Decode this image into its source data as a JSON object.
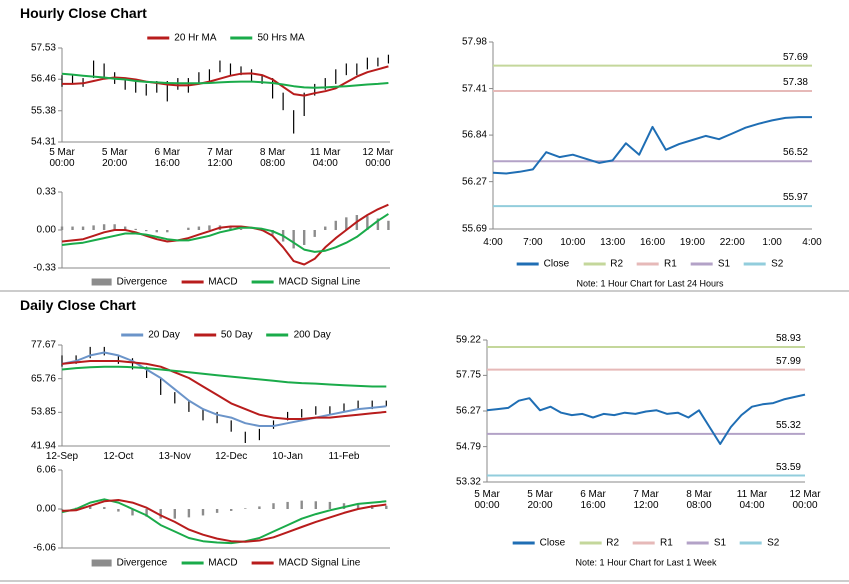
{
  "titles": [
    "Hourly Close Chart",
    "Daily Close Chart"
  ],
  "chart_data": [
    {
      "type": "ohlc",
      "bar_color": "#000000",
      "categories": [
        "5 Mar\n00:00",
        null,
        null,
        null,
        null,
        "5 Mar\n20:00",
        null,
        null,
        null,
        null,
        "6 Mar\n16:00",
        null,
        null,
        null,
        null,
        "7 Mar\n12:00",
        null,
        null,
        null,
        null,
        "8 Mar\n08:00",
        null,
        null,
        null,
        null,
        "11 Mar\n04:00",
        null,
        null,
        null,
        null,
        "12 Mar\n00:00",
        null
      ],
      "high": [
        56.6,
        56.6,
        56.5,
        57.1,
        57.0,
        56.7,
        56.5,
        56.4,
        56.3,
        56.4,
        56.4,
        56.5,
        56.5,
        56.7,
        56.8,
        57.1,
        57.0,
        56.9,
        56.8,
        56.6,
        56.5,
        56.0,
        55.4,
        56.0,
        56.3,
        56.5,
        56.8,
        57.0,
        57.0,
        57.2,
        57.2,
        57.3
      ],
      "low": [
        56.2,
        56.3,
        56.2,
        56.5,
        56.5,
        56.3,
        56.1,
        56.0,
        55.9,
        56.0,
        55.7,
        56.1,
        56.0,
        56.3,
        56.4,
        56.7,
        56.6,
        56.6,
        56.4,
        56.3,
        55.8,
        55.4,
        54.6,
        55.2,
        55.9,
        56.1,
        56.3,
        56.6,
        56.6,
        56.8,
        56.9,
        57.0
      ],
      "series": [
        {
          "name": "20 Hr MA",
          "color": "#b81c1c",
          "values": [
            56.3,
            56.3,
            56.32,
            56.4,
            56.48,
            56.52,
            56.5,
            56.45,
            56.38,
            56.33,
            56.28,
            56.25,
            56.25,
            56.3,
            56.38,
            56.48,
            56.58,
            56.65,
            56.66,
            56.6,
            56.45,
            56.2,
            55.95,
            55.9,
            55.98,
            56.05,
            56.15,
            56.35,
            56.55,
            56.7,
            56.8,
            56.9
          ]
        },
        {
          "name": "50 Hrs MA",
          "color": "#1aab4a",
          "values": [
            56.65,
            56.62,
            56.58,
            56.55,
            56.52,
            56.48,
            56.45,
            56.4,
            56.37,
            56.35,
            56.33,
            56.32,
            56.32,
            56.32,
            56.33,
            56.35,
            56.37,
            56.38,
            56.38,
            56.36,
            56.33,
            56.28,
            56.22,
            56.18,
            56.17,
            56.18,
            56.2,
            56.22,
            56.25,
            56.28,
            56.3,
            56.33
          ]
        }
      ],
      "ylim": [
        54.31,
        57.53
      ],
      "yticks": [
        54.31,
        55.38,
        56.46,
        57.53
      ]
    },
    {
      "type": "macd",
      "series": [
        {
          "name": "Divergence",
          "color": "#8c8c8c",
          "style": "bar",
          "values": [
            0.03,
            0.03,
            0.03,
            0.04,
            0.05,
            0.05,
            0.03,
            0.01,
            -0.01,
            -0.02,
            -0.02,
            0.0,
            0.02,
            0.03,
            0.04,
            0.04,
            0.03,
            0.01,
            0.0,
            -0.01,
            -0.04,
            -0.1,
            -0.16,
            -0.13,
            -0.06,
            0.03,
            0.08,
            0.11,
            0.13,
            0.12,
            0.1,
            0.08
          ]
        },
        {
          "name": "MACD",
          "color": "#b81c1c",
          "values": [
            -0.1,
            -0.09,
            -0.08,
            -0.05,
            -0.02,
            0.0,
            0.0,
            -0.02,
            -0.05,
            -0.08,
            -0.1,
            -0.09,
            -0.07,
            -0.04,
            -0.01,
            0.02,
            0.03,
            0.03,
            0.02,
            0.0,
            -0.05,
            -0.15,
            -0.27,
            -0.3,
            -0.25,
            -0.15,
            -0.07,
            0.0,
            0.07,
            0.13,
            0.18,
            0.22
          ]
        },
        {
          "name": "MACD Signal Line",
          "color": "#1aab4a",
          "values": [
            -0.13,
            -0.12,
            -0.11,
            -0.09,
            -0.07,
            -0.05,
            -0.03,
            -0.03,
            -0.04,
            -0.06,
            -0.08,
            -0.09,
            -0.09,
            -0.07,
            -0.05,
            -0.02,
            0.0,
            0.02,
            0.02,
            0.01,
            -0.01,
            -0.05,
            -0.11,
            -0.17,
            -0.19,
            -0.18,
            -0.15,
            -0.11,
            -0.06,
            0.01,
            0.08,
            0.14
          ]
        }
      ],
      "ylim": [
        -0.33,
        0.33
      ],
      "yticks": [
        0.33,
        {
          "value": 0,
          "label": "0.00"
        },
        -0.33
      ]
    },
    {
      "type": "line",
      "note": "Note: 1 Hour Chart for Last 24 Hours",
      "categories": [
        "4:00",
        null,
        null,
        "7:00",
        null,
        null,
        "10:00",
        null,
        null,
        "13:00",
        null,
        null,
        "16:00",
        null,
        null,
        "19:00",
        null,
        null,
        "22:00",
        null,
        null,
        "1:00",
        null,
        null,
        "4:00"
      ],
      "series": [
        {
          "name": "Close",
          "color": "#1f6eb4",
          "values": [
            56.38,
            56.37,
            56.39,
            56.42,
            56.63,
            56.57,
            56.6,
            56.55,
            56.5,
            56.53,
            56.74,
            56.6,
            56.94,
            56.66,
            56.73,
            56.78,
            56.83,
            56.79,
            56.86,
            56.93,
            56.98,
            57.02,
            57.05,
            57.06,
            57.06
          ]
        }
      ],
      "levels": [
        {
          "name": "R2",
          "color": "#c4d79b",
          "value": 57.69
        },
        {
          "name": "R1",
          "color": "#e6b9b8",
          "value": 57.38
        },
        {
          "name": "S1",
          "color": "#b3a2c7",
          "value": 56.52
        },
        {
          "name": "S2",
          "color": "#92cddc",
          "value": 55.97
        }
      ],
      "ylim": [
        55.69,
        57.98
      ],
      "yticks": [
        55.69,
        56.27,
        56.84,
        57.41,
        57.98
      ]
    },
    {
      "type": "ohlc",
      "bar_color": "#000000",
      "categories": [
        "12-Sep",
        null,
        null,
        null,
        "12-Oct",
        null,
        null,
        null,
        "13-Nov",
        null,
        null,
        null,
        "12-Dec",
        null,
        null,
        null,
        "10-Jan",
        null,
        null,
        null,
        "11-Feb",
        null,
        null,
        null
      ],
      "high": [
        74,
        74,
        77,
        77,
        74,
        73,
        70,
        66,
        61,
        58,
        55,
        54,
        51,
        47,
        48,
        51,
        54,
        55,
        56,
        56,
        57,
        58,
        58,
        58
      ],
      "low": [
        70,
        71,
        73,
        74,
        71,
        69,
        66,
        60,
        57,
        54,
        51,
        50,
        47,
        43,
        44,
        48,
        51,
        52,
        53,
        53,
        54,
        55,
        55,
        56
      ],
      "series": [
        {
          "name": "20 Day",
          "color": "#6b94c9",
          "values": [
            71,
            72,
            74,
            75,
            74,
            72,
            69,
            66,
            62,
            58,
            55,
            53,
            52,
            50,
            49,
            49,
            50,
            51,
            52,
            53,
            54,
            55,
            55.5,
            56
          ]
        },
        {
          "name": "50 Day",
          "color": "#b81c1c",
          "values": [
            71,
            71.5,
            72,
            72,
            72,
            71.5,
            71,
            70,
            68,
            66,
            63,
            60,
            57,
            55,
            53,
            52,
            51.5,
            51.5,
            52,
            52,
            52.5,
            53,
            53.5,
            54
          ]
        },
        {
          "name": "200 Day",
          "color": "#1aab4a",
          "values": [
            69,
            69.5,
            69.8,
            70,
            70,
            69.8,
            69.5,
            69,
            68.5,
            68,
            67.5,
            67,
            66.5,
            66,
            65.5,
            65,
            64.5,
            64.2,
            64,
            63.7,
            63.4,
            63.2,
            63,
            63
          ]
        }
      ],
      "ylim": [
        41.94,
        77.67
      ],
      "yticks": [
        41.94,
        53.85,
        65.76,
        77.67
      ]
    },
    {
      "type": "macd",
      "series": [
        {
          "name": "Divergence",
          "color": "#8c8c8c",
          "style": "bar",
          "values": [
            -0.2,
            0.2,
            0.5,
            0.3,
            -0.4,
            -1.0,
            -1.2,
            -1.5,
            -1.5,
            -1.3,
            -1.0,
            -0.6,
            -0.3,
            0.1,
            0.4,
            0.9,
            1.1,
            1.3,
            1.2,
            1.1,
            0.9,
            0.8,
            0.6,
            0.5
          ]
        },
        {
          "name": "MACD",
          "color": "#1aab4a",
          "values": [
            -0.5,
            0.0,
            1.0,
            1.5,
            1.0,
            0.0,
            -1.0,
            -2.5,
            -3.5,
            -4.5,
            -5.0,
            -5.2,
            -5.3,
            -5.0,
            -4.5,
            -3.5,
            -2.5,
            -1.5,
            -0.8,
            -0.2,
            0.3,
            0.8,
            1.0,
            1.2
          ]
        },
        {
          "name": "MACD Signal Line",
          "color": "#b81c1c",
          "values": [
            -0.3,
            -0.2,
            0.5,
            1.2,
            1.4,
            1.0,
            0.2,
            -1.0,
            -2.0,
            -3.2,
            -4.0,
            -4.6,
            -5.0,
            -5.1,
            -4.9,
            -4.4,
            -3.6,
            -2.8,
            -2.0,
            -1.3,
            -0.6,
            0.0,
            0.4,
            0.7
          ]
        }
      ],
      "ylim": [
        -6.06,
        6.06
      ],
      "yticks": [
        6.06,
        {
          "value": 0,
          "label": "0.00"
        },
        -6.06
      ]
    },
    {
      "type": "line",
      "note": "Note: 1 Hour Chart for Last 1 Week",
      "categories": [
        "5 Mar\n00:00",
        null,
        null,
        null,
        null,
        "5 Mar\n20:00",
        null,
        null,
        null,
        null,
        "6 Mar\n16:00",
        null,
        null,
        null,
        null,
        "7 Mar\n12:00",
        null,
        null,
        null,
        null,
        "8 Mar\n08:00",
        null,
        null,
        null,
        null,
        "11 Mar\n04:00",
        null,
        null,
        null,
        null,
        "12 Mar\n00:00"
      ],
      "series": [
        {
          "name": "Close",
          "color": "#1f6eb4",
          "values": [
            56.3,
            56.35,
            56.4,
            56.7,
            56.8,
            56.3,
            56.45,
            56.2,
            56.1,
            56.15,
            56.0,
            56.15,
            56.1,
            56.2,
            56.15,
            56.25,
            56.3,
            56.15,
            56.2,
            56.0,
            56.3,
            55.6,
            54.9,
            55.6,
            56.1,
            56.45,
            56.55,
            56.6,
            56.75,
            56.85,
            56.95
          ]
        }
      ],
      "levels": [
        {
          "name": "R2",
          "color": "#c4d79b",
          "value": 58.93
        },
        {
          "name": "R1",
          "color": "#e6b9b8",
          "value": 57.99
        },
        {
          "name": "S1",
          "color": "#b3a2c7",
          "value": 55.32
        },
        {
          "name": "S2",
          "color": "#92cddc",
          "value": 53.59
        }
      ],
      "ylim": [
        53.32,
        59.22
      ],
      "yticks": [
        53.32,
        54.79,
        56.27,
        57.75,
        59.22
      ]
    }
  ]
}
